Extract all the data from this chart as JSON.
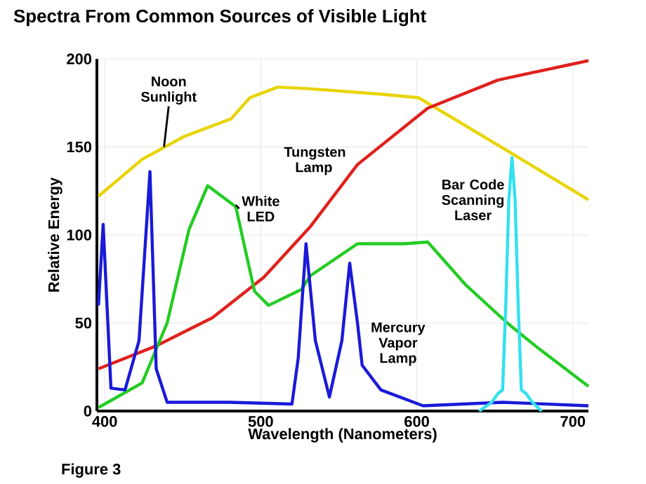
{
  "chart_data": {
    "type": "line",
    "title": "Spectra From Common Sources of Visible Light",
    "xlabel": "Wavelength (Nanometers)",
    "ylabel": "Relative Energy",
    "annotations": [
      "Figure 3"
    ],
    "xlim": [
      395,
      710
    ],
    "ylim": [
      0,
      200
    ],
    "xticks": [
      400,
      500,
      600,
      700
    ],
    "yticks": [
      0,
      50,
      100,
      150,
      200
    ],
    "grid": true,
    "legend": false,
    "line_style": "solid",
    "series": [
      {
        "name": "Noon Sunlight",
        "color": "#e8d400",
        "x": [
          396,
          424,
          451,
          481,
          493,
          511,
          532,
          577,
          601,
          622,
          652,
          682,
          710
        ],
        "values": [
          122,
          143,
          156,
          166,
          178,
          184,
          183,
          180,
          178,
          167,
          151,
          135,
          120
        ]
      },
      {
        "name": "Tungsten Lamp",
        "color": "#e0201c",
        "x": [
          396,
          433,
          469,
          502,
          532,
          562,
          607,
          652,
          710
        ],
        "values": [
          24,
          37,
          53,
          76,
          105,
          140,
          172,
          188,
          199
        ]
      },
      {
        "name": "White LED",
        "color": "#22cc22",
        "x": [
          396,
          424,
          440,
          454,
          466,
          484,
          496,
          505,
          526,
          532,
          562,
          592,
          607,
          631,
          658,
          676,
          710
        ],
        "values": [
          2,
          16,
          50,
          103,
          128,
          116,
          68,
          60,
          69,
          77,
          95,
          95,
          96,
          72,
          50,
          37,
          14
        ]
      },
      {
        "name": "Mercury Vapor Lamp",
        "color": "#1a1ad8",
        "x": [
          396,
          399,
          404,
          413,
          422,
          429,
          433,
          440,
          480,
          520,
          524,
          529,
          535,
          544,
          552,
          557,
          562,
          565,
          577,
          604,
          655,
          710
        ],
        "values": [
          60,
          106,
          13,
          12,
          40,
          136,
          24,
          5,
          5,
          4,
          30,
          95,
          40,
          8,
          40,
          84,
          50,
          26,
          12,
          3,
          5,
          3
        ]
      },
      {
        "name": "Bar Code Scanning Laser",
        "color": "#33e0f0",
        "x": [
          640,
          648,
          652,
          655,
          657,
          659,
          661,
          663,
          665,
          667,
          670,
          674,
          680
        ],
        "values": [
          0,
          5,
          10,
          12,
          60,
          120,
          144,
          120,
          60,
          12,
          10,
          5,
          0
        ]
      }
    ]
  }
}
